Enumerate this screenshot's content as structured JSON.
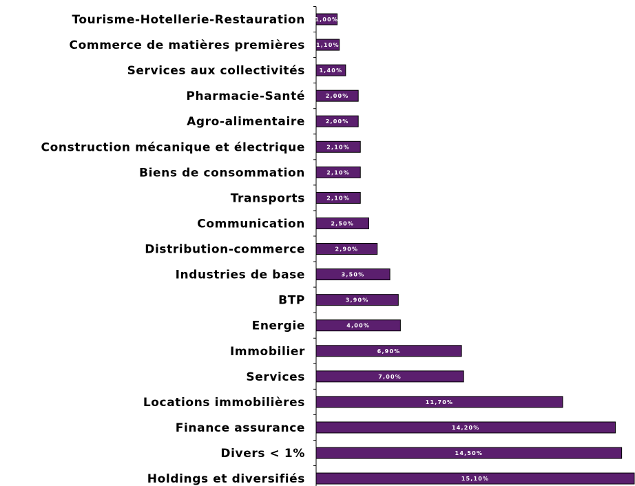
{
  "chart_data": {
    "type": "barh",
    "categories": [
      "Tourisme-Hotellerie-Restauration",
      "Commerce de matières premières",
      "Services aux collectivités",
      "Pharmacie-Santé",
      "Agro-alimentaire",
      "Construction mécanique et électrique",
      "Biens de consommation",
      "Transports",
      "Communication",
      "Distribution-commerce",
      "Industries de base",
      "BTP",
      "Energie",
      "Immobilier",
      "Services",
      "Locations immobilières",
      "Finance assurance",
      "Divers < 1%",
      "Holdings et diversifiés"
    ],
    "values": [
      1.0,
      1.1,
      1.4,
      2.0,
      2.0,
      2.1,
      2.1,
      2.1,
      2.5,
      2.9,
      3.5,
      3.9,
      4.0,
      6.9,
      7.0,
      11.7,
      14.2,
      14.5,
      15.1
    ],
    "value_labels": [
      "1,00%",
      "1,10%",
      "1,40%",
      "2,00%",
      "2,00%",
      "2,10%",
      "2,10%",
      "2,10%",
      "2,50%",
      "2,90%",
      "3,50%",
      "3,90%",
      "4,00%",
      "6,90%",
      "7,00%",
      "11,70%",
      "14,20%",
      "14,50%",
      "15,10%"
    ],
    "color": "#5b1f6e"
  }
}
